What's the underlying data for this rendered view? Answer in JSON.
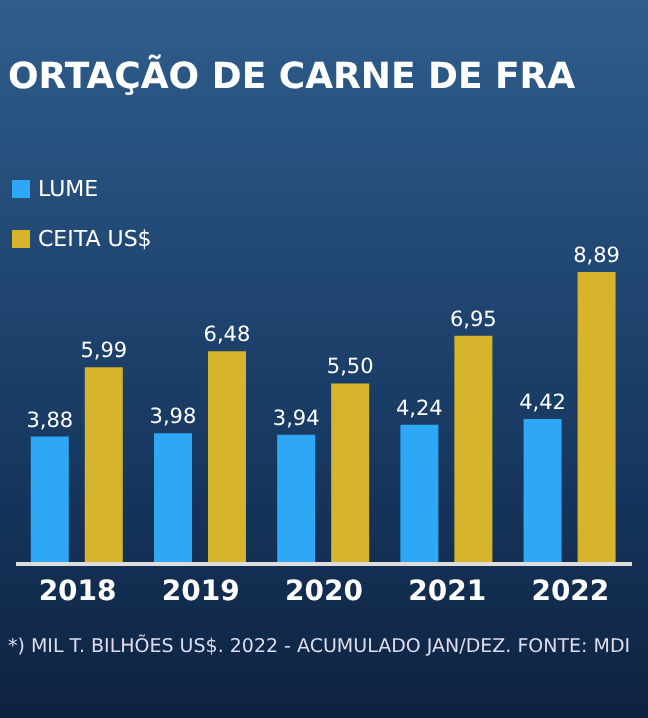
{
  "chart_data": {
    "type": "bar",
    "title": "ORTAÇÃO DE CARNE DE FRA",
    "categories": [
      "2018",
      "2019",
      "2020",
      "2021",
      "2022"
    ],
    "series": [
      {
        "name": "LUME",
        "color": "#2ea8f5",
        "values": [
          3.88,
          3.98,
          3.94,
          4.24,
          4.42
        ],
        "value_labels": [
          "3,88",
          "3,98",
          "3,94",
          "4,24",
          "4,42"
        ]
      },
      {
        "name": "CEITA US$",
        "color": "#d6b52c",
        "values": [
          5.99,
          6.48,
          5.5,
          6.95,
          8.89
        ],
        "value_labels": [
          "5,99",
          "6,48",
          "5,50",
          "6,95",
          "8,89"
        ]
      }
    ],
    "legend": "top left",
    "grid": false,
    "annotations": [
      "*) MIL T. BILHÕES US$. 2022 - ACUMULADO JAN/DEZ. FONTE: MDI"
    ]
  }
}
